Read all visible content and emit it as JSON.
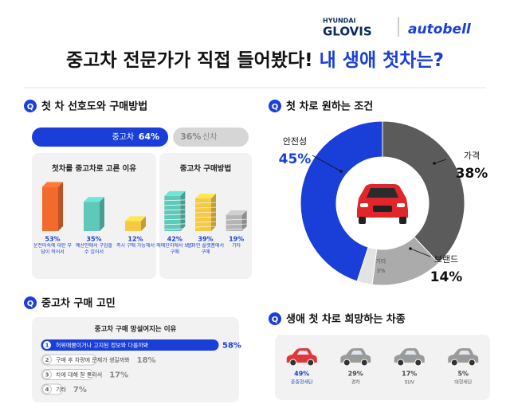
{
  "header": {
    "logo_brand": "HYUNDAI",
    "logo_name": "GLOVIS",
    "logo_partner": "autobell",
    "title": "중고차 전문가가 직접 들어봤다!",
    "title_highlight": "내 생애 첫차는?",
    "section_icon": "Q"
  },
  "chart_data": [
    {
      "type": "split-bar",
      "title": "첫 차 선호도와 구매방법",
      "categories": [
        "중고차",
        "신차"
      ],
      "values": [
        64,
        36
      ],
      "value_labels": [
        "64%",
        "36%"
      ],
      "colors": [
        "#1a3fd8",
        "#d6d6d6"
      ]
    },
    {
      "type": "bar3d",
      "title": "첫차를 중고차로 고른 이유",
      "categories": [
        "운전미숙에 대한 부담이 적어서",
        "예산안에서 구입할 수 있어서",
        "즉시 구매 가능해서"
      ],
      "values": [
        53,
        35,
        12
      ],
      "value_labels": [
        "53%",
        "35%",
        "12%"
      ],
      "colors": [
        "#f26a2e",
        "#5ec9b8",
        "#f6c945"
      ]
    },
    {
      "type": "bar3d",
      "title": "중고차 구매방법",
      "categories": [
        "매매단지에서 보고 구매",
        "온라인 플랫폼에서 구매",
        "기타"
      ],
      "values": [
        42,
        39,
        19
      ],
      "value_labels": [
        "42%",
        "39%",
        "19%"
      ],
      "colors": [
        "#5ec9b8",
        "#f6c945",
        "#b5b5b5"
      ]
    },
    {
      "type": "donut",
      "title": "첫 차로 원하는 조건",
      "categories": [
        "가격",
        "브랜드",
        "기타",
        "안전성"
      ],
      "values": [
        38,
        14,
        3,
        45
      ],
      "value_labels": [
        "38%",
        "14%",
        "3%",
        "45%"
      ],
      "colors": [
        "#5b5b5b",
        "#ababab",
        "#e3e3e3",
        "#1a3fd8"
      ]
    },
    {
      "type": "ranked-bar",
      "title": "중고차 구매 고민",
      "subtitle": "중고차 구매 망설여지는 이유",
      "ranks": [
        "1",
        "2",
        "3",
        "4"
      ],
      "categories": [
        "허위매물이거나 고지된 정보와 다를까봐",
        "구매 후 차량에 문제가 생길까봐",
        "차에 대해 잘 몰라서",
        "기타"
      ],
      "values": [
        58,
        18,
        17,
        7
      ],
      "value_labels": [
        "58%",
        "18%",
        "17%",
        "7%"
      ],
      "colors": [
        "#1a3fd8",
        "#c4c4c4",
        "#c4c4c4",
        "#c4c4c4"
      ]
    },
    {
      "type": "pictogram",
      "title": "생애 첫 차로 희망하는 차종",
      "categories": [
        "준중형세단",
        "경차",
        "SUV",
        "대형세단"
      ],
      "values": [
        49,
        29,
        17,
        5
      ],
      "value_labels": [
        "49%",
        "29%",
        "17%",
        "5%"
      ],
      "colors": [
        "#e0383a",
        "#9a9a9a",
        "#9a9a9a",
        "#9a9a9a"
      ]
    }
  ]
}
